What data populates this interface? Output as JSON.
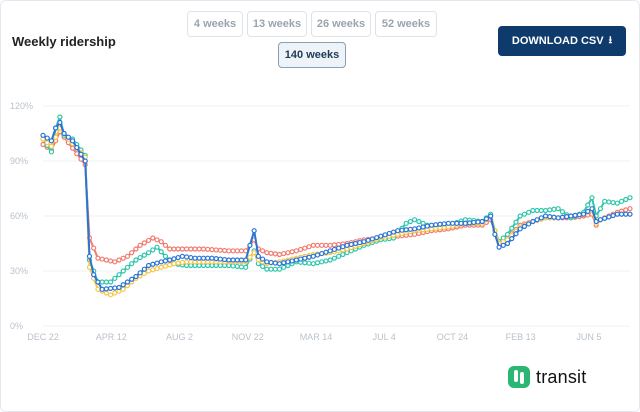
{
  "header": {
    "title": "Weekly ridership",
    "download_label": "DOWNLOAD CSV",
    "download_icon": "download-arrow-icon"
  },
  "ranges": [
    {
      "label": "4 weeks",
      "active": false
    },
    {
      "label": "13 weeks",
      "active": false
    },
    {
      "label": "26 weeks",
      "active": false
    },
    {
      "label": "52 weeks",
      "active": false
    },
    {
      "label": "140 weeks",
      "active": true
    }
  ],
  "brand": {
    "name": "transit",
    "color": "#2bb673"
  },
  "chart_data": {
    "type": "line",
    "x_tick_labels": [
      "DEC 22",
      "APR 12",
      "AUG 2",
      "NOV 22",
      "MAR 14",
      "JUL 4",
      "OCT 24",
      "FEB 13",
      "JUN 5"
    ],
    "y_tick_labels": [
      "0%",
      "30%",
      "60%",
      "90%",
      "120%"
    ],
    "ylim": [
      0,
      120
    ],
    "grid": true,
    "x_count": 140,
    "series": [
      {
        "color": "#f07b6e",
        "anchors": [
          [
            0,
            99
          ],
          [
            2,
            96
          ],
          [
            4,
            106
          ],
          [
            6,
            100
          ],
          [
            10,
            88
          ],
          [
            11,
            48
          ],
          [
            13,
            37
          ],
          [
            17,
            35
          ],
          [
            20,
            38
          ],
          [
            23,
            44
          ],
          [
            26,
            48
          ],
          [
            28,
            46
          ],
          [
            30,
            42
          ],
          [
            34,
            42
          ],
          [
            38,
            42
          ],
          [
            44,
            41
          ],
          [
            48,
            41
          ],
          [
            50,
            47
          ],
          [
            51,
            42
          ],
          [
            53,
            40
          ],
          [
            56,
            39
          ],
          [
            60,
            41
          ],
          [
            64,
            44
          ],
          [
            68,
            44
          ],
          [
            72,
            45
          ],
          [
            76,
            47
          ],
          [
            80,
            48
          ],
          [
            84,
            49
          ],
          [
            88,
            50
          ],
          [
            92,
            52
          ],
          [
            96,
            53
          ],
          [
            100,
            55
          ],
          [
            104,
            55
          ],
          [
            106,
            58
          ],
          [
            107,
            52
          ],
          [
            108,
            46
          ],
          [
            110,
            48
          ],
          [
            113,
            55
          ],
          [
            116,
            57
          ],
          [
            119,
            59
          ],
          [
            122,
            59
          ],
          [
            125,
            59
          ],
          [
            128,
            60
          ],
          [
            130,
            61
          ],
          [
            131,
            55
          ],
          [
            132,
            58
          ],
          [
            136,
            62
          ],
          [
            139,
            64
          ]
        ]
      },
      {
        "color": "#2fc7ab",
        "anchors": [
          [
            0,
            102
          ],
          [
            2,
            95
          ],
          [
            3,
            108
          ],
          [
            4,
            114
          ],
          [
            5,
            104
          ],
          [
            7,
            102
          ],
          [
            10,
            93
          ],
          [
            11,
            36
          ],
          [
            13,
            24
          ],
          [
            16,
            24
          ],
          [
            19,
            30
          ],
          [
            22,
            36
          ],
          [
            25,
            40
          ],
          [
            27,
            43
          ],
          [
            29,
            38
          ],
          [
            31,
            34
          ],
          [
            34,
            33
          ],
          [
            38,
            33
          ],
          [
            44,
            33
          ],
          [
            48,
            32
          ],
          [
            50,
            41
          ],
          [
            51,
            34
          ],
          [
            53,
            31
          ],
          [
            56,
            31
          ],
          [
            60,
            35
          ],
          [
            64,
            34
          ],
          [
            68,
            36
          ],
          [
            72,
            40
          ],
          [
            76,
            44
          ],
          [
            80,
            47
          ],
          [
            83,
            48
          ],
          [
            86,
            56
          ],
          [
            88,
            58
          ],
          [
            92,
            54
          ],
          [
            96,
            55
          ],
          [
            100,
            58
          ],
          [
            104,
            57
          ],
          [
            106,
            61
          ],
          [
            107,
            52
          ],
          [
            108,
            46
          ],
          [
            110,
            50
          ],
          [
            113,
            60
          ],
          [
            116,
            63
          ],
          [
            119,
            63
          ],
          [
            122,
            64
          ],
          [
            125,
            59
          ],
          [
            128,
            62
          ],
          [
            130,
            70
          ],
          [
            131,
            60
          ],
          [
            133,
            68
          ],
          [
            136,
            67
          ],
          [
            139,
            70
          ]
        ]
      },
      {
        "color": "#f5c84b",
        "anchors": [
          [
            0,
            102
          ],
          [
            2,
            98
          ],
          [
            4,
            108
          ],
          [
            6,
            102
          ],
          [
            10,
            92
          ],
          [
            11,
            32
          ],
          [
            13,
            20
          ],
          [
            16,
            17
          ],
          [
            19,
            20
          ],
          [
            22,
            26
          ],
          [
            25,
            30
          ],
          [
            28,
            32
          ],
          [
            31,
            34
          ],
          [
            34,
            35
          ],
          [
            38,
            35
          ],
          [
            44,
            35
          ],
          [
            48,
            35
          ],
          [
            50,
            40
          ],
          [
            51,
            36
          ],
          [
            53,
            34
          ],
          [
            56,
            35
          ],
          [
            60,
            37
          ],
          [
            64,
            39
          ],
          [
            68,
            40
          ],
          [
            72,
            42
          ],
          [
            76,
            45
          ],
          [
            80,
            48
          ],
          [
            84,
            50
          ],
          [
            88,
            52
          ],
          [
            92,
            53
          ],
          [
            96,
            54
          ],
          [
            100,
            56
          ],
          [
            104,
            56
          ],
          [
            106,
            60
          ],
          [
            107,
            52
          ],
          [
            108,
            45
          ],
          [
            110,
            47
          ],
          [
            113,
            54
          ],
          [
            116,
            57
          ],
          [
            119,
            59
          ],
          [
            122,
            59
          ],
          [
            125,
            60
          ],
          [
            128,
            61
          ],
          [
            130,
            63
          ],
          [
            131,
            56
          ],
          [
            132,
            58
          ],
          [
            136,
            61
          ],
          [
            139,
            61
          ]
        ]
      },
      {
        "color": "#2a73d9",
        "anchors": [
          [
            0,
            104
          ],
          [
            2,
            101
          ],
          [
            3,
            108
          ],
          [
            4,
            111
          ],
          [
            5,
            105
          ],
          [
            7,
            101
          ],
          [
            10,
            90
          ],
          [
            11,
            38
          ],
          [
            12,
            28
          ],
          [
            14,
            20
          ],
          [
            18,
            21
          ],
          [
            22,
            27
          ],
          [
            25,
            33
          ],
          [
            28,
            35
          ],
          [
            30,
            36
          ],
          [
            33,
            38
          ],
          [
            36,
            37
          ],
          [
            40,
            37
          ],
          [
            44,
            36
          ],
          [
            48,
            36
          ],
          [
            50,
            52
          ],
          [
            51,
            38
          ],
          [
            53,
            35
          ],
          [
            56,
            34
          ],
          [
            60,
            36
          ],
          [
            64,
            38
          ],
          [
            68,
            41
          ],
          [
            72,
            44
          ],
          [
            76,
            46
          ],
          [
            80,
            49
          ],
          [
            84,
            52
          ],
          [
            88,
            53
          ],
          [
            92,
            55
          ],
          [
            96,
            56
          ],
          [
            100,
            56
          ],
          [
            104,
            57
          ],
          [
            106,
            60
          ],
          [
            107,
            50
          ],
          [
            108,
            43
          ],
          [
            110,
            45
          ],
          [
            113,
            53
          ],
          [
            116,
            57
          ],
          [
            119,
            60
          ],
          [
            122,
            59
          ],
          [
            125,
            60
          ],
          [
            128,
            61
          ],
          [
            130,
            64
          ],
          [
            131,
            57
          ],
          [
            132,
            58
          ],
          [
            136,
            61
          ],
          [
            139,
            61
          ]
        ]
      }
    ]
  }
}
